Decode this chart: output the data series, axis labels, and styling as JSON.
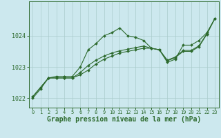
{
  "title": "Graphe pression niveau de la mer (hPa)",
  "background_color": "#cce8ee",
  "grid_color": "#aacccc",
  "line_color": "#2d6a2d",
  "xlim": [
    -0.5,
    23.5
  ],
  "ylim": [
    1021.7,
    1025.1
  ],
  "yticks": [
    1022,
    1023,
    1024
  ],
  "xticks": [
    0,
    1,
    2,
    3,
    4,
    5,
    6,
    7,
    8,
    9,
    10,
    11,
    12,
    13,
    14,
    15,
    16,
    17,
    18,
    19,
    20,
    21,
    22,
    23
  ],
  "series1": [
    1022.0,
    1022.3,
    1022.65,
    1022.7,
    1022.7,
    1022.7,
    1023.0,
    1023.55,
    1023.75,
    1024.0,
    1024.1,
    1024.25,
    1024.0,
    1023.95,
    1023.85,
    1023.6,
    1023.55,
    1023.15,
    1023.25,
    1023.7,
    1023.7,
    1023.85,
    1024.1,
    1024.55
  ],
  "series2": [
    1022.05,
    1022.35,
    1022.65,
    1022.65,
    1022.65,
    1022.65,
    1022.75,
    1022.9,
    1023.1,
    1023.25,
    1023.35,
    1023.45,
    1023.5,
    1023.55,
    1023.6,
    1023.6,
    1023.55,
    1023.2,
    1023.3,
    1023.5,
    1023.5,
    1023.65,
    1024.05,
    1024.55
  ],
  "series3": [
    1022.05,
    1022.35,
    1022.65,
    1022.65,
    1022.65,
    1022.65,
    1022.82,
    1023.05,
    1023.22,
    1023.35,
    1023.45,
    1023.52,
    1023.57,
    1023.62,
    1023.67,
    1023.6,
    1023.55,
    1023.22,
    1023.32,
    1023.53,
    1023.53,
    1023.68,
    1024.07,
    1024.55
  ],
  "marker": "D",
  "markersize": 2.0,
  "linewidth": 0.8,
  "xlabel_fontsize": 7,
  "ytick_fontsize": 6,
  "xtick_fontsize": 5
}
